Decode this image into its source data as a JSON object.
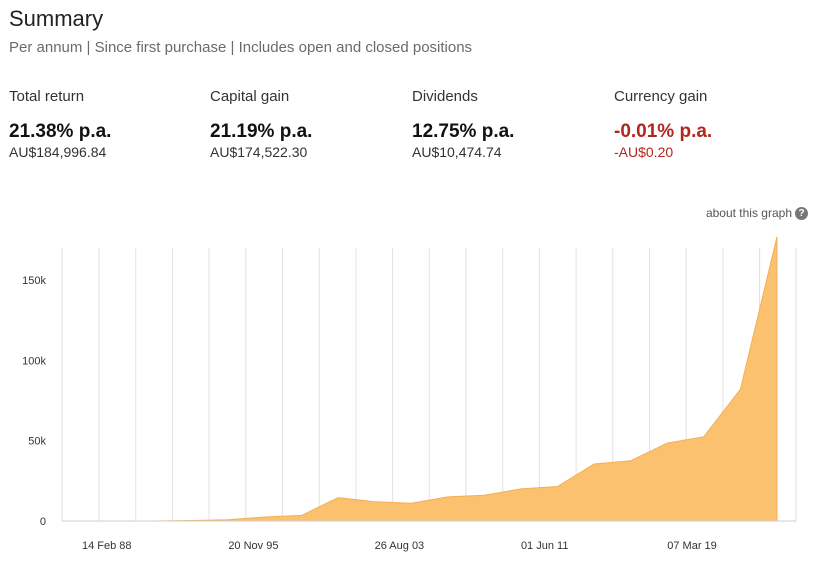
{
  "header": {
    "title": "Summary",
    "subtitle": "Per annum | Since first purchase | Includes open and closed positions"
  },
  "metrics": [
    {
      "label": "Total return",
      "percent": "21.38% p.a.",
      "amount": "AU$184,996.84"
    },
    {
      "label": "Capital gain",
      "percent": "21.19% p.a.",
      "amount": "AU$174,522.30"
    },
    {
      "label": "Dividends",
      "percent": "12.75% p.a.",
      "amount": "AU$10,474.74"
    },
    {
      "label": "Currency gain",
      "percent": "-0.01% p.a.",
      "amount": "-AU$0.20"
    }
  ],
  "about_link": "about this graph",
  "colors": {
    "area_fill": "#fbc16e",
    "area_stroke": "#f2b055",
    "negative": "#b3261e",
    "grid": "#e2e2e2"
  },
  "chart_data": {
    "type": "area",
    "title": "",
    "xlabel": "",
    "ylabel": "",
    "ylim": [
      0,
      170000
    ],
    "y_ticks": [
      0,
      50000,
      100000,
      150000
    ],
    "y_tick_labels": [
      "0",
      "50k",
      "100k",
      "150k"
    ],
    "x_tick_labels": [
      "14 Feb 88",
      "20 Nov 95",
      "26 Aug 03",
      "01 Jun 11",
      "07 Mar 19"
    ],
    "x_tick_index": [
      0,
      4,
      8,
      12,
      16
    ],
    "values": [
      0,
      0,
      0,
      300,
      800,
      2500,
      3500,
      14500,
      12000,
      11000,
      15000,
      16000,
      20000,
      21500,
      35500,
      37500,
      48500,
      52500,
      82000,
      177000
    ]
  }
}
